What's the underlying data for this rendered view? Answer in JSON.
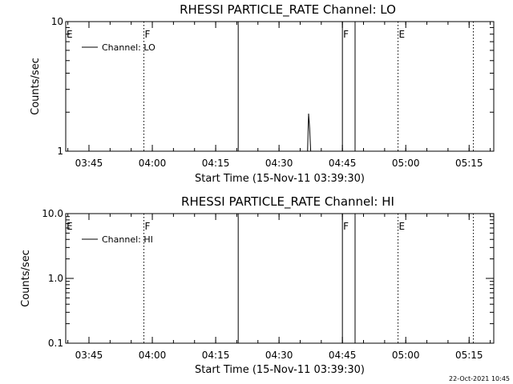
{
  "timestamp": "22-Oct-2021 10:45",
  "chart_data": [
    {
      "type": "line",
      "title": "RHESSI PARTICLE_RATE Channel: LO",
      "xlabel": "Start Time (15-Nov-11 03:39:30)",
      "ylabel": "Counts/sec",
      "yscale": "log",
      "ylim": [
        1,
        10
      ],
      "xlim": [
        "03:39:30",
        "05:20:50"
      ],
      "x_ticks": [
        "03:45",
        "04:00",
        "04:15",
        "04:30",
        "04:45",
        "05:00",
        "05:15"
      ],
      "y_ticks": [
        "1",
        "10"
      ],
      "legend": {
        "label": "Channel: LO",
        "placement": "top-left"
      },
      "series": [
        {
          "name": "Channel: LO",
          "x": [
            "04:36:45",
            "04:37:00",
            "04:37:15",
            "04:37:30"
          ],
          "y": [
            1,
            1.95,
            1.5,
            1
          ]
        }
      ],
      "events": [
        {
          "time": "03:58:00",
          "style": "dotted",
          "flag": "F"
        },
        {
          "time": "04:20:20",
          "style": "solid",
          "flag": ""
        },
        {
          "time": "04:45:00",
          "style": "solid",
          "flag": "F"
        },
        {
          "time": "04:48:00",
          "style": "solid",
          "flag": ""
        },
        {
          "time": "04:58:10",
          "style": "dotted",
          "flag": "E"
        },
        {
          "time": "05:16:00",
          "style": "dotted",
          "flag": ""
        }
      ],
      "left_flag": "E"
    },
    {
      "type": "line",
      "title": "RHESSI PARTICLE_RATE Channel: HI",
      "xlabel": "Start Time (15-Nov-11 03:39:30)",
      "ylabel": "Counts/sec",
      "yscale": "log",
      "ylim": [
        0.1,
        10
      ],
      "xlim": [
        "03:39:30",
        "05:20:50"
      ],
      "x_ticks": [
        "03:45",
        "04:00",
        "04:15",
        "04:30",
        "04:45",
        "05:00",
        "05:15"
      ],
      "y_ticks": [
        "0.1",
        "1.0",
        "10.0"
      ],
      "legend": {
        "label": "Channel: HI",
        "placement": "top-left"
      },
      "series": [
        {
          "name": "Channel: HI",
          "x": [],
          "y": []
        }
      ],
      "events": [
        {
          "time": "03:58:00",
          "style": "dotted",
          "flag": "F"
        },
        {
          "time": "04:20:20",
          "style": "solid",
          "flag": ""
        },
        {
          "time": "04:45:00",
          "style": "solid",
          "flag": "F"
        },
        {
          "time": "04:48:00",
          "style": "solid",
          "flag": ""
        },
        {
          "time": "04:58:10",
          "style": "dotted",
          "flag": "E"
        },
        {
          "time": "05:16:00",
          "style": "dotted",
          "flag": ""
        }
      ],
      "left_flag": "E"
    }
  ]
}
